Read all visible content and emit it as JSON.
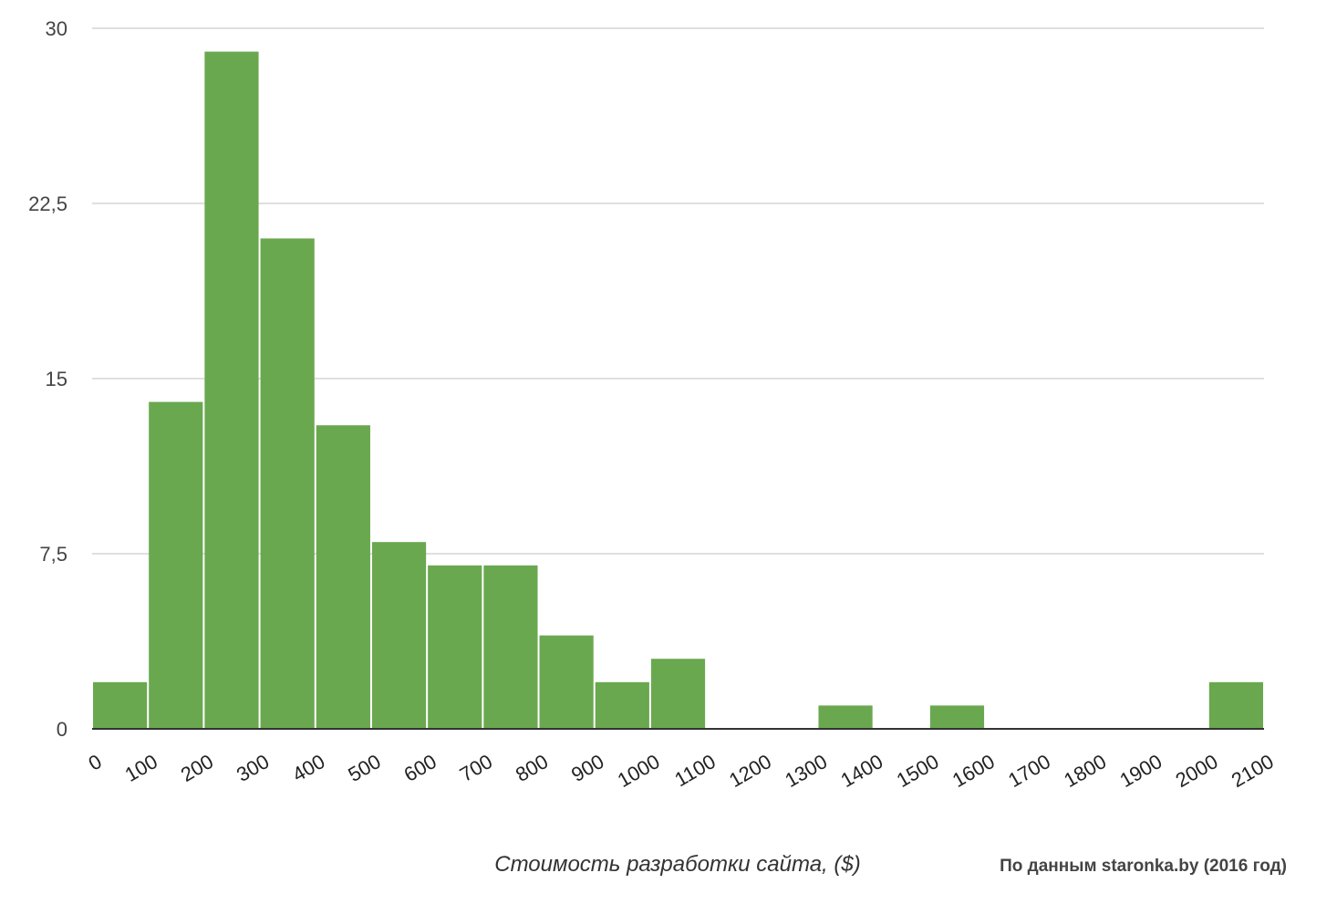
{
  "chart_data": {
    "type": "bar",
    "subtype": "histogram",
    "bin_edges": [
      0,
      100,
      200,
      300,
      400,
      500,
      600,
      700,
      800,
      900,
      1000,
      1100,
      1200,
      1300,
      1400,
      1500,
      1600,
      1700,
      1800,
      1900,
      2000,
      2100
    ],
    "values": [
      2,
      14,
      29,
      21,
      13,
      8,
      7,
      7,
      4,
      2,
      3,
      0,
      0,
      1,
      0,
      1,
      0,
      0,
      0,
      0,
      2
    ],
    "x_tick_labels": [
      "0",
      "100",
      "200",
      "300",
      "400",
      "500",
      "600",
      "700",
      "800",
      "900",
      "1000",
      "1100",
      "1200",
      "1300",
      "1400",
      "1500",
      "1600",
      "1700",
      "1800",
      "1900",
      "2000",
      "2100"
    ],
    "y_ticks": [
      0,
      7.5,
      15,
      22.5,
      30
    ],
    "y_tick_labels": [
      "0",
      "7,5",
      "15",
      "22,5",
      "30"
    ],
    "ylim": [
      0,
      30
    ],
    "xlim": [
      0,
      2100
    ],
    "xlabel": "Стоимость разработки сайта, ($)",
    "ylabel": "",
    "grid": "horizontal",
    "bar_color": "#6aa84f",
    "grid_color": "#cccccc",
    "axis_color": "#333333"
  },
  "source_note": "По данным staronka.by (2016 год)"
}
